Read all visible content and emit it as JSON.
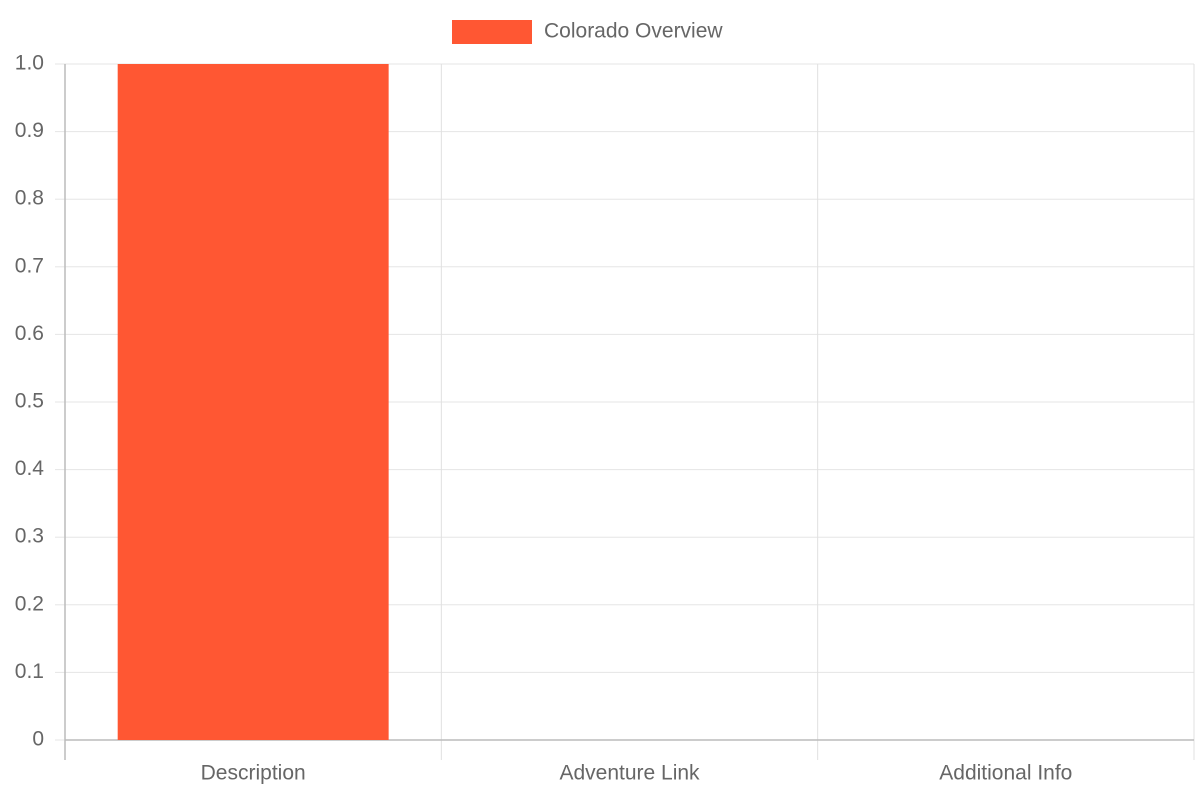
{
  "chart_data": {
    "type": "bar",
    "categories": [
      "Description",
      "Adventure Link",
      "Additional Info"
    ],
    "series": [
      {
        "name": "Colorado Overview",
        "color": "#ff5733",
        "values": [
          1,
          0,
          0
        ]
      }
    ],
    "ylim": [
      0,
      1
    ],
    "yticks": [
      0,
      0.1,
      0.2,
      0.3,
      0.4,
      0.5,
      0.6,
      0.7,
      0.8,
      0.9,
      {
        "value": 1,
        "label": "1.0"
      }
    ],
    "grid": true,
    "legend": "top"
  }
}
